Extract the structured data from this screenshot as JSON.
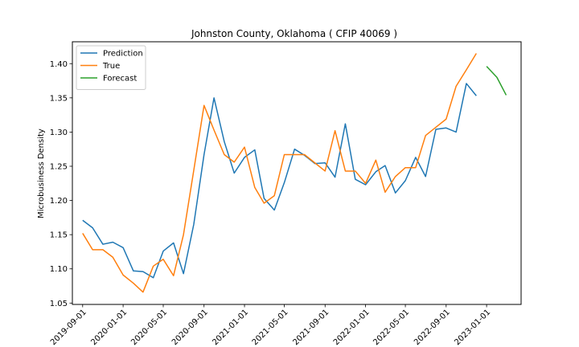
{
  "chart_data": {
    "type": "line",
    "title": "Johnston County, Oklahoma ( CFIP 40069 )",
    "xlabel": "",
    "ylabel": "Microbusiness Density",
    "xlim": [
      "2019-08-01",
      "2023-04-15"
    ],
    "ylim": [
      1.048,
      1.432
    ],
    "x_ticks": [
      "2019-09-01",
      "2020-01-01",
      "2020-05-01",
      "2020-09-01",
      "2021-01-01",
      "2021-05-01",
      "2021-09-01",
      "2022-01-01",
      "2022-05-01",
      "2022-09-01",
      "2023-01-01"
    ],
    "y_ticks": [
      1.05,
      1.1,
      1.15,
      1.2,
      1.25,
      1.3,
      1.35,
      1.4
    ],
    "y_tick_labels": [
      "1.05",
      "1.10",
      "1.15",
      "1.20",
      "1.25",
      "1.30",
      "1.35",
      "1.40"
    ],
    "grid": false,
    "legend_position": "top-left",
    "series": [
      {
        "name": "Prediction",
        "color": "#1f77b4",
        "x": [
          "2019-09-01",
          "2019-10-01",
          "2019-11-01",
          "2019-12-01",
          "2020-01-01",
          "2020-02-01",
          "2020-03-01",
          "2020-04-01",
          "2020-05-01",
          "2020-06-01",
          "2020-07-01",
          "2020-08-01",
          "2020-09-01",
          "2020-10-01",
          "2020-11-01",
          "2020-12-01",
          "2021-01-01",
          "2021-02-01",
          "2021-03-01",
          "2021-04-01",
          "2021-05-01",
          "2021-06-01",
          "2021-07-01",
          "2021-08-01",
          "2021-09-01",
          "2021-10-01",
          "2021-11-01",
          "2021-12-01",
          "2022-01-01",
          "2022-02-01",
          "2022-03-01",
          "2022-04-01",
          "2022-05-01",
          "2022-06-01",
          "2022-07-01",
          "2022-08-01",
          "2022-09-01",
          "2022-10-01",
          "2022-11-01",
          "2022-12-01"
        ],
        "y": [
          1.171,
          1.16,
          1.136,
          1.139,
          1.131,
          1.097,
          1.096,
          1.087,
          1.126,
          1.138,
          1.093,
          1.165,
          1.267,
          1.35,
          1.286,
          1.24,
          1.263,
          1.274,
          1.203,
          1.186,
          1.226,
          1.275,
          1.266,
          1.254,
          1.255,
          1.234,
          1.312,
          1.231,
          1.223,
          1.242,
          1.251,
          1.211,
          1.229,
          1.263,
          1.235,
          1.304,
          1.306,
          1.3,
          1.371,
          1.353
        ]
      },
      {
        "name": "True",
        "color": "#ff7f0e",
        "x": [
          "2019-09-01",
          "2019-10-01",
          "2019-11-01",
          "2019-12-01",
          "2020-01-01",
          "2020-02-01",
          "2020-03-01",
          "2020-04-01",
          "2020-05-01",
          "2020-06-01",
          "2020-07-01",
          "2020-08-01",
          "2020-09-01",
          "2020-10-01",
          "2020-11-01",
          "2020-12-01",
          "2021-01-01",
          "2021-02-01",
          "2021-03-01",
          "2021-04-01",
          "2021-05-01",
          "2021-06-01",
          "2021-07-01",
          "2021-08-01",
          "2021-09-01",
          "2021-10-01",
          "2021-11-01",
          "2021-12-01",
          "2022-01-01",
          "2022-02-01",
          "2022-03-01",
          "2022-04-01",
          "2022-05-01",
          "2022-06-01",
          "2022-07-01",
          "2022-08-01",
          "2022-09-01",
          "2022-10-01",
          "2022-11-01",
          "2022-12-01"
        ],
        "y": [
          1.152,
          1.128,
          1.128,
          1.117,
          1.091,
          1.079,
          1.066,
          1.104,
          1.114,
          1.09,
          1.15,
          1.244,
          1.339,
          1.303,
          1.267,
          1.256,
          1.278,
          1.219,
          1.196,
          1.207,
          1.267,
          1.267,
          1.267,
          1.255,
          1.243,
          1.302,
          1.243,
          1.243,
          1.225,
          1.259,
          1.212,
          1.235,
          1.248,
          1.248,
          1.295,
          1.307,
          1.319,
          1.367,
          1.391,
          1.415
        ]
      },
      {
        "name": "Forecast",
        "color": "#2ca02c",
        "x": [
          "2023-01-01",
          "2023-02-01",
          "2023-03-01"
        ],
        "y": [
          1.396,
          1.38,
          1.354
        ]
      }
    ]
  }
}
